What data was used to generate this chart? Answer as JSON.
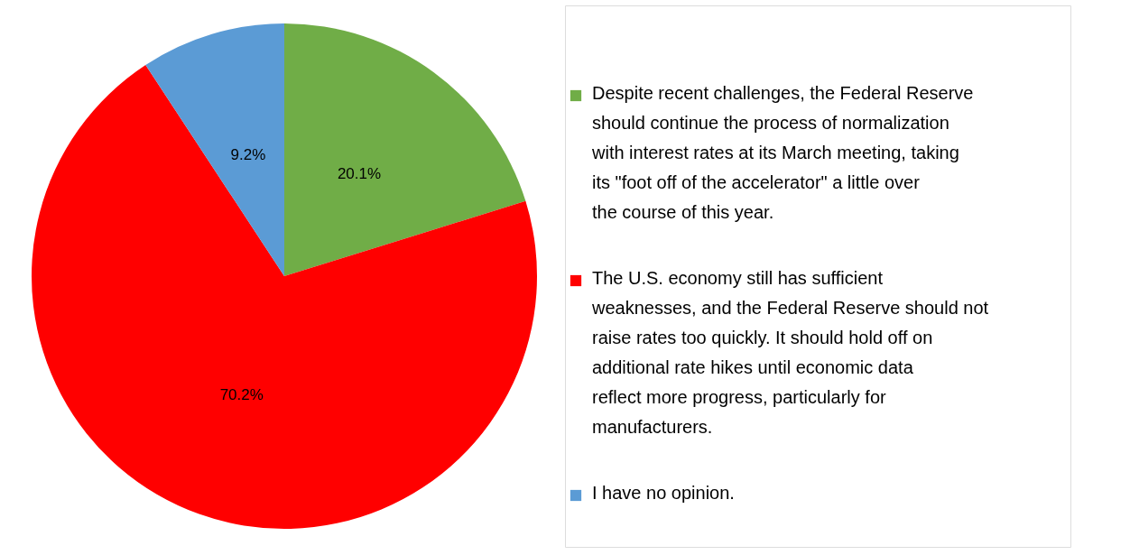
{
  "chart_data": {
    "type": "pie",
    "categories": [
      "Despite recent challenges, the Federal Reserve should continue the process of normalization with interest rates at its March meeting, taking its \"foot off of the accelerator\" a little over the course of this year.",
      "The U.S. economy still has sufficient weaknesses, and the Federal Reserve should not raise rates too quickly. It should hold off on additional rate hikes until economic data reflect more progress, particularly for manufacturers.",
      "I have no opinion."
    ],
    "values": [
      20.1,
      70.2,
      9.2
    ],
    "colors": [
      "#70ad47",
      "#ff0000",
      "#5b9bd5"
    ],
    "value_labels": [
      "20.1%",
      "70.2%",
      "9.2%"
    ],
    "legend": "right"
  }
}
